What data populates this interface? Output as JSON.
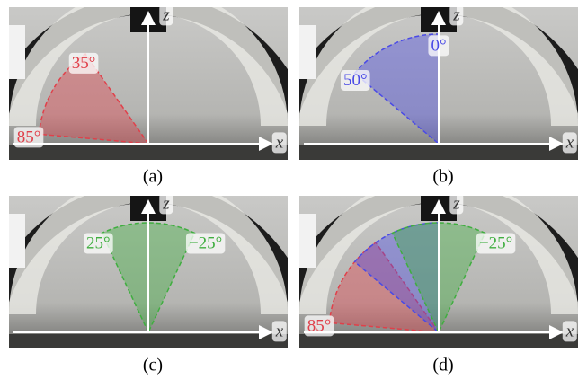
{
  "panels": [
    {
      "caption": "(a)",
      "axes": {
        "x": "x",
        "z": "z"
      },
      "color": "#e0404a",
      "angles": [
        {
          "value": 35,
          "label": "35°"
        },
        {
          "value": 85,
          "label": "85°"
        }
      ]
    },
    {
      "caption": "(b)",
      "axes": {
        "x": "x",
        "z": "z"
      },
      "color": "#4a4ae6",
      "angles": [
        {
          "value": 0,
          "label": "0°"
        },
        {
          "value": 50,
          "label": "50°"
        }
      ]
    },
    {
      "caption": "(c)",
      "axes": {
        "x": "x",
        "z": "z"
      },
      "color": "#3fae3f",
      "angles": [
        {
          "value": 25,
          "label": "25°"
        },
        {
          "value": -25,
          "label": "−25°"
        }
      ]
    },
    {
      "caption": "(d)",
      "axes": {
        "x": "x",
        "z": "z"
      },
      "color": "#e0404a",
      "angles": [
        {
          "value": -25,
          "label": "−25°"
        },
        {
          "value": 85,
          "label": "85°"
        }
      ]
    }
  ]
}
